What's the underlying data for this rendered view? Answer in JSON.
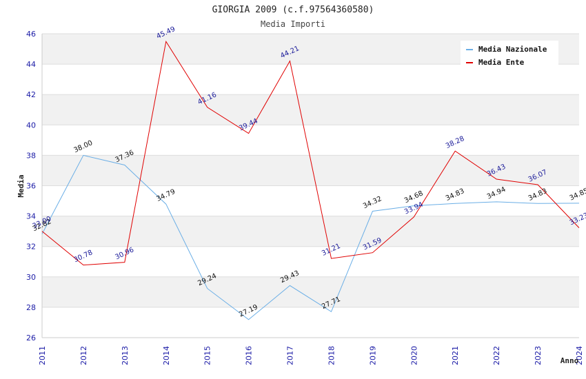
{
  "chart_data": {
    "type": "line",
    "title": "GIORGIA 2009 (c.f.97564360580)",
    "subtitle": "Media Importi",
    "xlabel": "Anno",
    "ylabel": "Media",
    "x": [
      "2011",
      "2012",
      "2013",
      "2014",
      "2015",
      "2016",
      "2017",
      "2018",
      "2019",
      "2020",
      "2021",
      "2022",
      "2023",
      "2024"
    ],
    "ylim": [
      26,
      46
    ],
    "yticks": [
      26,
      28,
      30,
      32,
      34,
      36,
      38,
      40,
      42,
      44,
      46
    ],
    "grid": true,
    "legend_position": "top-right",
    "series": [
      {
        "name": "Media Nazionale",
        "color": "#6aaee6",
        "label_color": "#111111",
        "values": [
          32.82,
          38.0,
          37.36,
          34.79,
          29.24,
          27.19,
          29.43,
          27.71,
          34.32,
          34.68,
          34.83,
          34.94,
          34.83,
          34.85
        ],
        "labels": [
          "32.82",
          "38.00",
          "37.36",
          "34.79",
          "29.24",
          "27.19",
          "29.43",
          "27.71",
          "34.32",
          "34.68",
          "34.83",
          "34.94",
          "34.83",
          "34.85"
        ]
      },
      {
        "name": "Media Ente",
        "color": "#e00000",
        "label_color": "#1a1a99",
        "values": [
          33.0,
          30.78,
          30.96,
          45.49,
          41.16,
          39.44,
          44.21,
          31.21,
          31.59,
          33.94,
          38.28,
          36.43,
          36.07,
          33.23
        ],
        "labels": [
          "33.00",
          "30.78",
          "30.96",
          "45.49",
          "41.16",
          "39.44",
          "44.21",
          "31.21",
          "31.59",
          "33.94",
          "38.28",
          "36.43",
          "36.07",
          "33.23"
        ]
      }
    ]
  }
}
